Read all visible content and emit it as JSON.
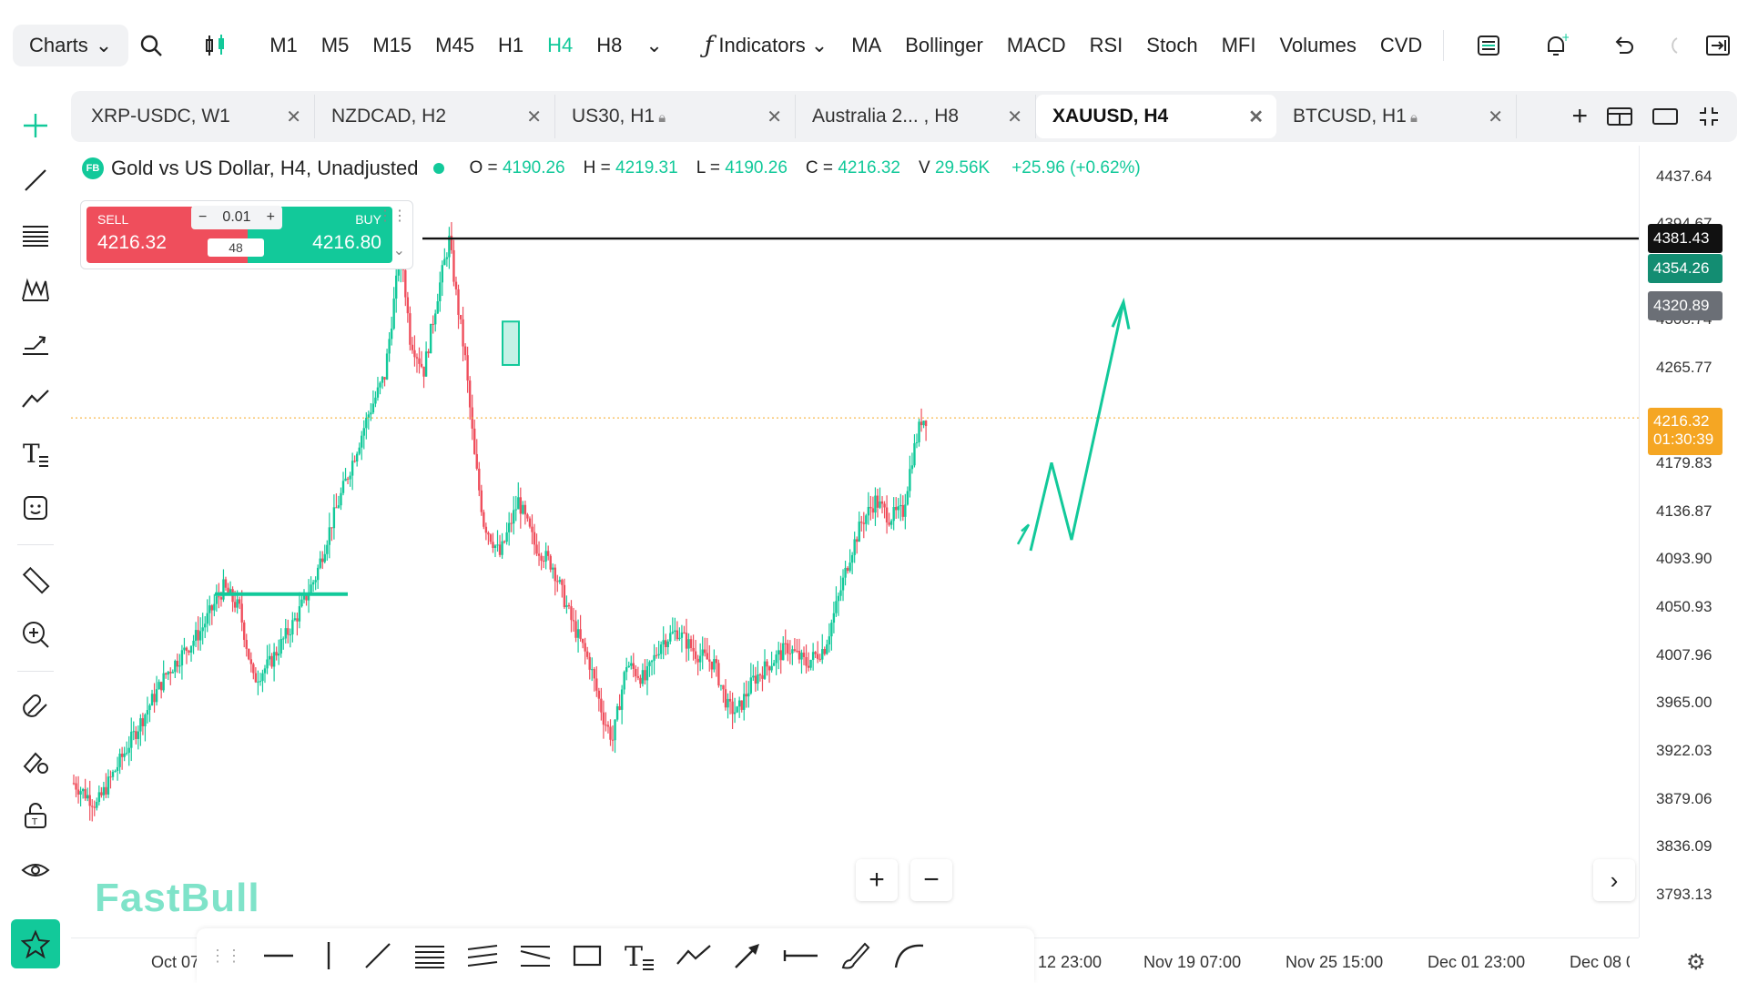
{
  "toolbar": {
    "charts_label": "Charts",
    "timeframes": [
      "M1",
      "M5",
      "M15",
      "M45",
      "H1",
      "H4",
      "H8"
    ],
    "active_timeframe": "H4",
    "indicators_label": "Indicators",
    "indicators": [
      "MA",
      "Bollinger",
      "MACD",
      "RSI",
      "Stoch",
      "MFI",
      "Volumes",
      "CVD"
    ]
  },
  "tabs": [
    {
      "label": "XRP-USDC, W1",
      "locked": false
    },
    {
      "label": "NZDCAD, H2",
      "locked": false
    },
    {
      "label": "US30, H1",
      "locked": true
    },
    {
      "label": "Australia 2... , H8",
      "locked": false
    },
    {
      "label": "XAUUSD, H4",
      "locked": false,
      "active": true
    },
    {
      "label": "BTCUSD, H1",
      "locked": true
    }
  ],
  "legend": {
    "badge": "FB",
    "title": "Gold vs US Dollar, H4, Unadjusted",
    "o_label": "O =",
    "o": "4190.26",
    "h_label": "H =",
    "h": "4219.31",
    "l_label": "L =",
    "l": "4190.26",
    "c_label": "C =",
    "c": "4216.32",
    "v_label": "V",
    "v": "29.56K",
    "change": "+25.96 (+0.62%)"
  },
  "trade": {
    "sell_label": "SELL",
    "sell_price": "4216.32",
    "buy_label": "BUY",
    "buy_price": "4216.80",
    "qty": "0.01",
    "spread": "48"
  },
  "price_axis": [
    "4437.64",
    "4394.67",
    "4308.74",
    "4265.77",
    "4179.83",
    "4136.87",
    "4093.90",
    "4050.93",
    "4007.96",
    "3965.00",
    "3922.03",
    "3879.06",
    "3836.09",
    "3793.13"
  ],
  "price_tags": {
    "black": "4381.43",
    "green": "4354.26",
    "grey": "4320.89",
    "current": "4216.32",
    "countdown": "01:30:39"
  },
  "time_axis": [
    "Oct 07",
    "12 23:00",
    "Nov 19 07:00",
    "Nov 25 15:00",
    "Dec 01 23:00",
    "Dec 08 0"
  ],
  "logo": "FastBull",
  "colors": {
    "up": "#12c99a",
    "down": "#ef4e5c",
    "current": "#f5a623",
    "accent": "#12c99a"
  }
}
